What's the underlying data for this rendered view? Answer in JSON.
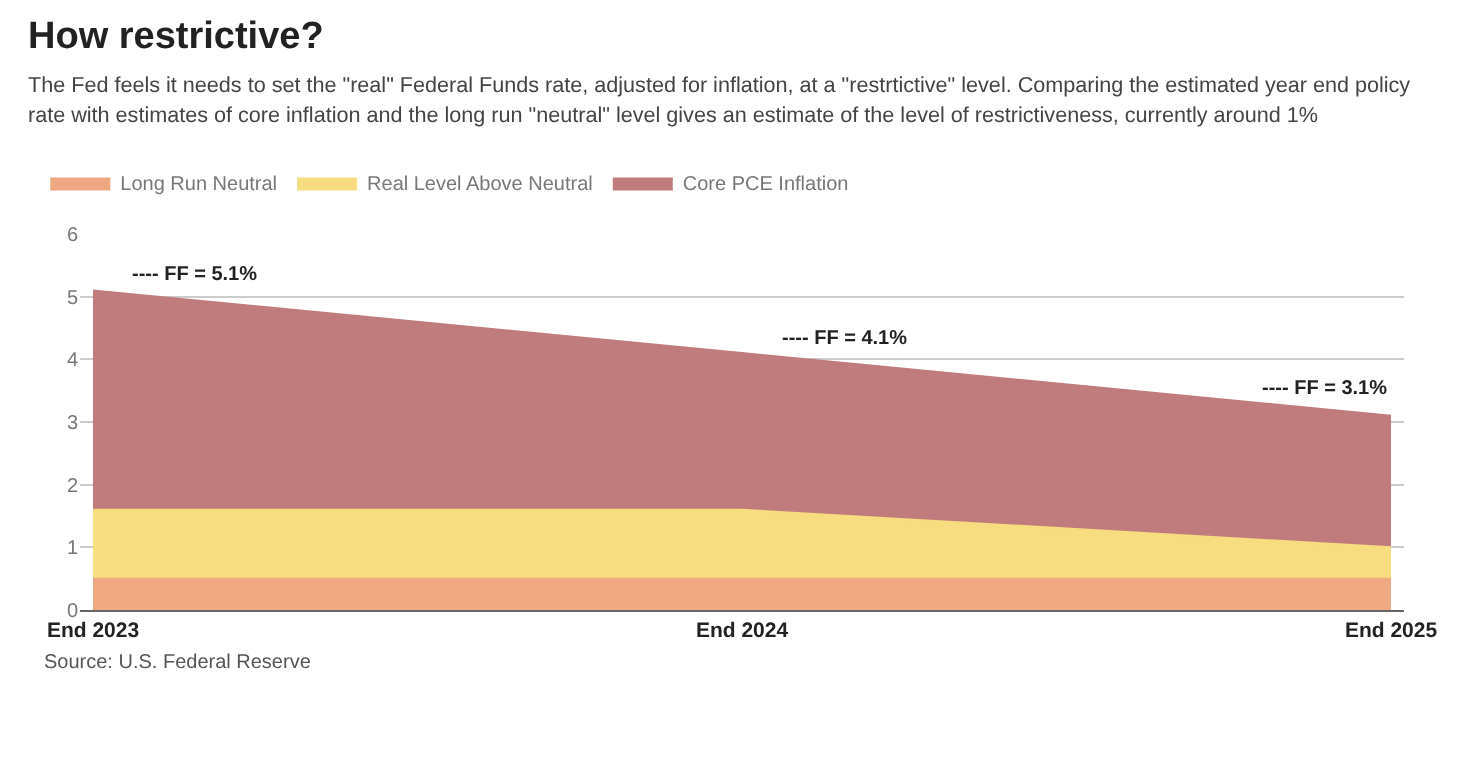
{
  "chart_data": {
    "type": "area",
    "stacked": true,
    "title": "How restrictive?",
    "subtitle": "The Fed feels it needs to set the \"real\" Federal Funds rate, adjusted for inflation, at a \"restrtictive\" level. Comparing the estimated year end policy rate with estimates of core inflation and the long run \"neutral\" level gives an estimate of the level of restrictiveness, currently around 1%",
    "categories": [
      "End 2023",
      "End 2024",
      "End 2025"
    ],
    "series": [
      {
        "name": "Long Run Neutral",
        "color": "#f0a882",
        "values": [
          0.5,
          0.5,
          0.5
        ]
      },
      {
        "name": "Real Level Above Neutral",
        "color": "#f8dc80",
        "values": [
          1.1,
          1.1,
          0.5
        ]
      },
      {
        "name": "Core PCE Inflation",
        "color": "#c07c7c",
        "values": [
          3.5,
          2.5,
          2.1
        ]
      }
    ],
    "ylim": [
      0,
      6
    ],
    "yticks": [
      0,
      1,
      2,
      3,
      4,
      5,
      6
    ],
    "grid": "y",
    "legend": "top left",
    "annotations": [
      {
        "text": "---- FF = 5.1%",
        "x": "End 2023",
        "y": 5.1
      },
      {
        "text": "---- FF = 4.1%",
        "x": "End 2024",
        "y": 4.1
      },
      {
        "text": "---- FF = 3.1%",
        "x": "End 2025",
        "y": 3.1
      },
      "Source: U.S. Federal Reserve"
    ]
  }
}
